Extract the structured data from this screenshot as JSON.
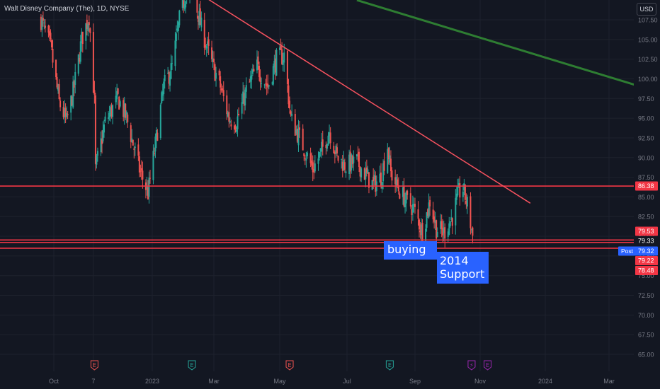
{
  "header": {
    "symbol_title": "Walt Disney Company (The), 1D, NYSE",
    "currency_button": "USD"
  },
  "colors": {
    "background": "#131722",
    "grid": "#1e222d",
    "up_candle": "#26a69a",
    "down_candle": "#ef5350",
    "axis_text": "#787b86",
    "hline": "#f23645",
    "downtrend_line": "#f7525f",
    "green_trend": "#2e7d32",
    "note_fill": "#2962ff"
  },
  "chart_data": {
    "type": "candlestick",
    "y_axis": {
      "range": [
        63.0,
        110.0
      ],
      "ticks": [
        "107.50",
        "105.00",
        "102.50",
        "100.00",
        "97.50",
        "95.00",
        "92.50",
        "90.00",
        "87.50",
        "85.00",
        "82.50",
        "80.00",
        "77.50",
        "75.00",
        "72.50",
        "70.00",
        "67.50",
        "65.00"
      ],
      "tick_values": [
        107.5,
        105,
        102.5,
        100,
        97.5,
        95,
        92.5,
        90,
        87.5,
        85,
        82.5,
        80,
        77.5,
        75,
        72.5,
        70,
        67.5,
        65
      ]
    },
    "x_axis": {
      "labels": [
        {
          "text": "Oct",
          "date": "2022-10-01"
        },
        {
          "text": "7",
          "date": "2022-11-07"
        },
        {
          "text": "2023",
          "date": "2023-01-01"
        },
        {
          "text": "Mar",
          "date": "2023-03-01"
        },
        {
          "text": "May",
          "date": "2023-05-01"
        },
        {
          "text": "Jul",
          "date": "2023-07-01"
        },
        {
          "text": "Sep",
          "date": "2023-09-01"
        },
        {
          "text": "Nov",
          "date": "2023-11-01"
        },
        {
          "text": "2024",
          "date": "2024-01-01"
        },
        {
          "text": "Mar",
          "date": "2024-03-01"
        }
      ]
    },
    "close_path": [
      [
        "2022-09-19",
        107.5
      ],
      [
        "2022-09-28",
        104.0
      ],
      [
        "2022-10-06",
        97.0
      ],
      [
        "2022-10-13",
        94.5
      ],
      [
        "2022-10-20",
        99.0
      ],
      [
        "2022-10-27",
        105.0
      ],
      [
        "2022-11-03",
        108.0
      ],
      [
        "2022-11-08",
        97.0
      ],
      [
        "2022-11-09",
        88.5
      ],
      [
        "2022-11-18",
        94.5
      ],
      [
        "2022-11-30",
        97.5
      ],
      [
        "2022-12-08",
        95.0
      ],
      [
        "2022-12-20",
        88.5
      ],
      [
        "2022-12-28",
        85.5
      ],
      [
        "2023-01-05",
        92.5
      ],
      [
        "2023-01-12",
        99.0
      ],
      [
        "2023-01-20",
        101.5
      ],
      [
        "2023-01-27",
        107.5
      ],
      [
        "2023-02-02",
        111.0
      ],
      [
        "2023-02-10",
        110.5
      ],
      [
        "2023-02-17",
        106.5
      ],
      [
        "2023-02-27",
        102.0
      ],
      [
        "2023-03-06",
        99.5
      ],
      [
        "2023-03-15",
        95.0
      ],
      [
        "2023-03-22",
        94.5
      ],
      [
        "2023-03-31",
        98.5
      ],
      [
        "2023-04-10",
        101.5
      ],
      [
        "2023-04-20",
        99.0
      ],
      [
        "2023-04-28",
        102.5
      ],
      [
        "2023-05-05",
        103.0
      ],
      [
        "2023-05-11",
        95.0
      ],
      [
        "2023-05-19",
        92.5
      ],
      [
        "2023-05-31",
        88.5
      ],
      [
        "2023-06-07",
        90.5
      ],
      [
        "2023-06-15",
        93.5
      ],
      [
        "2023-06-22",
        90.0
      ],
      [
        "2023-06-30",
        89.0
      ],
      [
        "2023-07-10",
        89.5
      ],
      [
        "2023-07-17",
        88.0
      ],
      [
        "2023-07-25",
        86.5
      ],
      [
        "2023-08-01",
        87.5
      ],
      [
        "2023-08-07",
        91.5
      ],
      [
        "2023-08-10",
        88.0
      ],
      [
        "2023-08-17",
        86.0
      ],
      [
        "2023-08-24",
        84.5
      ],
      [
        "2023-08-31",
        83.5
      ],
      [
        "2023-09-08",
        80.5
      ],
      [
        "2023-09-15",
        84.5
      ],
      [
        "2023-09-21",
        81.0
      ],
      [
        "2023-09-28",
        80.5
      ],
      [
        "2023-10-06",
        82.5
      ],
      [
        "2023-10-12",
        85.5
      ],
      [
        "2023-10-16",
        86.0
      ],
      [
        "2023-10-20",
        84.0
      ],
      [
        "2023-10-26",
        79.3
      ]
    ],
    "drawings": {
      "horizontal_lines": [
        86.38,
        79.53,
        79.22,
        78.48
      ],
      "downtrend_line": [
        [
          "2023-02-19",
          110.5
        ],
        [
          "2023-12-18",
          84.2
        ]
      ],
      "green_trend_line": [
        [
          "2023-07-10",
          110.0
        ],
        [
          "2024-04-05",
          98.8
        ]
      ]
    },
    "price_tags": [
      {
        "kind": "86.38",
        "value": 86.38,
        "label": "86.38"
      },
      {
        "kind": "79.53",
        "value": 79.53,
        "label": "79.53"
      },
      {
        "kind": "last",
        "value": 79.33,
        "label": "79.33"
      },
      {
        "kind": "post",
        "value": 79.32,
        "label": "79.32",
        "prefix": "Post"
      },
      {
        "kind": "79.22",
        "value": 79.22,
        "label": "79.22"
      },
      {
        "kind": "78.48",
        "value": 78.48,
        "label": "78.48"
      }
    ],
    "event_markers": [
      {
        "date": "2022-11-08",
        "letter": "E"
      },
      {
        "date": "2023-02-08",
        "letter": "E"
      },
      {
        "date": "2023-05-10",
        "letter": "E"
      },
      {
        "date": "2023-08-09",
        "letter": "E"
      },
      {
        "date": "2023-10-24",
        "letter": "⚡"
      },
      {
        "date": "2023-11-08",
        "letter": "E"
      }
    ]
  },
  "annotations": {
    "buying": "buying",
    "support": "2014\nSupport"
  }
}
